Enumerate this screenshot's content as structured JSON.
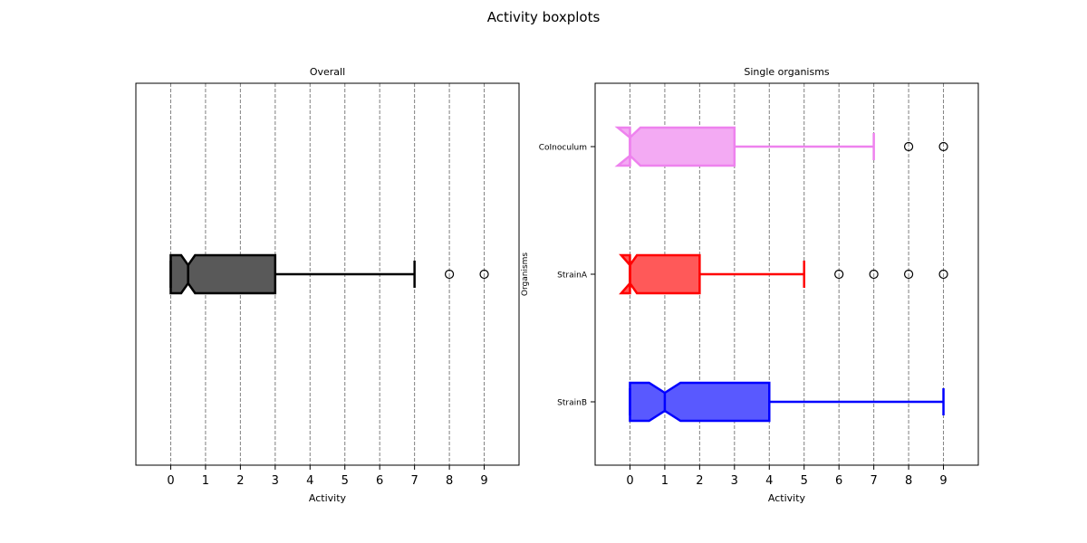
{
  "figure": {
    "title": "Activity boxplots"
  },
  "chart_data": [
    {
      "type": "boxplot",
      "orientation": "horizontal",
      "notched": true,
      "title": "Overall",
      "xlabel": "Activity",
      "ylabel": "",
      "xlim": [
        -1,
        10
      ],
      "xticks": [
        "0",
        "1",
        "2",
        "3",
        "4",
        "5",
        "6",
        "7",
        "8",
        "9"
      ],
      "grid_x": true,
      "categories": [],
      "boxes": [
        {
          "name": "",
          "color": "#000000",
          "fill": "#595959",
          "q1": 0,
          "median": 0.5,
          "q3": 3,
          "notch_low": 0.3,
          "notch_high": 0.7,
          "whisker_low": 0,
          "whisker_high": 7,
          "outliers": [
            8,
            9
          ]
        }
      ]
    },
    {
      "type": "boxplot",
      "orientation": "horizontal",
      "notched": true,
      "title": "Single organisms",
      "xlabel": "Activity",
      "ylabel": "Organisms",
      "xlim": [
        -1,
        10
      ],
      "xticks": [
        "0",
        "1",
        "2",
        "3",
        "4",
        "5",
        "6",
        "7",
        "8",
        "9"
      ],
      "grid_x": true,
      "categories": [
        "CoInoculum",
        "StrainA",
        "StrainB"
      ],
      "boxes": [
        {
          "name": "CoInoculum",
          "color": "#ee82ee",
          "fill": "#f3aaf3",
          "q1": 0,
          "median": 0,
          "q3": 3,
          "notch_low": -0.35,
          "notch_high": 0.3,
          "whisker_low": 0,
          "whisker_high": 7,
          "outliers": [
            8,
            9
          ]
        },
        {
          "name": "StrainA",
          "color": "#ff0000",
          "fill": "#ff5959",
          "q1": 0,
          "median": 0,
          "q3": 2,
          "notch_low": -0.25,
          "notch_high": 0.2,
          "whisker_low": 0,
          "whisker_high": 5,
          "outliers": [
            6,
            7,
            8,
            9
          ]
        },
        {
          "name": "StrainB",
          "color": "#0000ff",
          "fill": "#5959ff",
          "q1": 0,
          "median": 1,
          "q3": 4,
          "notch_low": 0.55,
          "notch_high": 1.45,
          "whisker_low": 0,
          "whisker_high": 9,
          "outliers": []
        }
      ]
    }
  ]
}
